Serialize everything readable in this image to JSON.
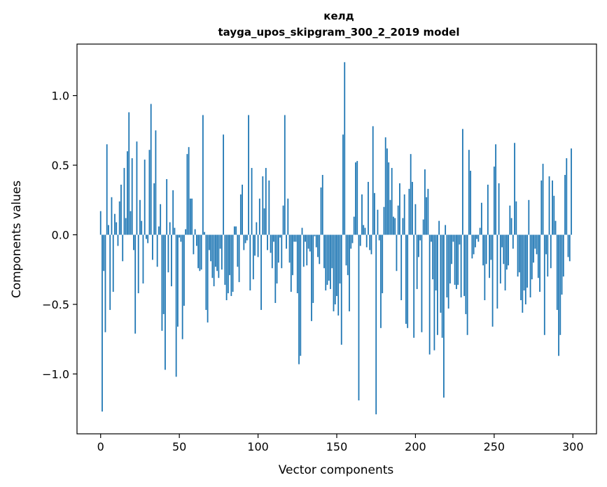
{
  "chart_data": {
    "type": "bar",
    "title": "келд",
    "subtitle": "tayga_upos_skipgram_300_2_2019 model",
    "xlabel": "Vector components",
    "ylabel": "Components values",
    "xlim": [
      -15,
      315
    ],
    "ylim": [
      -1.43,
      1.37
    ],
    "xticks": [
      0,
      50,
      100,
      150,
      200,
      250,
      300
    ],
    "xtick_labels": [
      "0",
      "50",
      "100",
      "150",
      "200",
      "250",
      "300"
    ],
    "yticks": [
      -1.0,
      -0.5,
      0.0,
      0.5,
      1.0
    ],
    "ytick_labels": [
      "−1.0",
      "−0.5",
      "0.0",
      "0.5",
      "1.0"
    ],
    "bar_color": "#1f77b4",
    "values": [
      0.17,
      -1.27,
      -0.26,
      -0.7,
      0.65,
      0.07,
      -0.54,
      0.27,
      -0.41,
      0.15,
      0.09,
      -0.08,
      0.24,
      0.36,
      -0.19,
      0.48,
      0.12,
      0.6,
      0.88,
      0.17,
      0.55,
      -0.11,
      -0.71,
      0.67,
      -0.42,
      0.25,
      0.1,
      -0.35,
      0.54,
      -0.03,
      -0.06,
      0.61,
      0.94,
      -0.18,
      0.37,
      0.75,
      -0.23,
      0.06,
      0.22,
      -0.69,
      -0.57,
      -0.97,
      0.4,
      -0.27,
      0.09,
      -0.37,
      0.32,
      0.05,
      -1.02,
      -0.66,
      -0.02,
      -0.05,
      -0.75,
      -0.51,
      0.04,
      0.58,
      0.63,
      0.26,
      0.26,
      -0.14,
      0.04,
      -0.08,
      -0.24,
      -0.26,
      -0.25,
      0.86,
      0.02,
      -0.54,
      -0.63,
      -0.11,
      -0.19,
      -0.31,
      -0.37,
      -0.23,
      -0.26,
      -0.31,
      -0.1,
      -0.25,
      0.72,
      -0.36,
      -0.47,
      -0.42,
      -0.29,
      -0.44,
      -0.41,
      0.06,
      0.06,
      -0.23,
      -0.34,
      0.29,
      0.36,
      -0.11,
      -0.06,
      -0.04,
      0.86,
      -0.4,
      0.48,
      -0.32,
      -0.15,
      0.09,
      -0.16,
      0.26,
      -0.54,
      0.42,
      0.19,
      0.48,
      -0.11,
      0.39,
      -0.13,
      -0.24,
      -0.05,
      -0.49,
      -0.35,
      -0.2,
      -0.02,
      -0.24,
      0.21,
      0.86,
      -0.1,
      0.26,
      -0.2,
      -0.41,
      -0.29,
      -0.05,
      -0.05,
      -0.42,
      -0.93,
      -0.87,
      0.05,
      -0.23,
      -0.05,
      -0.22,
      -0.1,
      -0.12,
      -0.62,
      -0.49,
      -0.01,
      -0.09,
      -0.16,
      -0.21,
      0.34,
      0.43,
      -0.24,
      -0.4,
      -0.36,
      -0.33,
      -0.39,
      -0.24,
      -0.55,
      -0.5,
      -0.44,
      -0.58,
      -0.35,
      -0.79,
      0.72,
      1.24,
      -0.22,
      -0.29,
      -0.55,
      -0.1,
      -0.06,
      0.13,
      0.52,
      0.53,
      -1.19,
      -0.08,
      0.29,
      0.07,
      0.05,
      -0.09,
      0.38,
      -0.11,
      -0.14,
      0.78,
      0.3,
      -1.29,
      0.18,
      -0.04,
      -0.67,
      -0.42,
      0.2,
      0.7,
      0.62,
      0.52,
      0.25,
      0.48,
      0.13,
      0.12,
      -0.26,
      0.21,
      0.37,
      -0.47,
      0.12,
      0.29,
      -0.64,
      -0.67,
      0.33,
      0.58,
      0.38,
      -0.74,
      0.22,
      -0.39,
      -0.16,
      -0.04,
      -0.7,
      0.11,
      0.47,
      0.27,
      0.33,
      -0.86,
      -0.05,
      -0.32,
      -0.83,
      -0.4,
      -0.72,
      0.1,
      -0.56,
      -0.74,
      -1.17,
      0.07,
      -0.45,
      -0.53,
      -0.35,
      -0.21,
      -0.05,
      -0.36,
      -0.39,
      -0.36,
      -0.07,
      -0.45,
      0.76,
      -0.44,
      -0.57,
      -0.72,
      0.61,
      0.46,
      -0.17,
      -0.14,
      -0.09,
      -0.03,
      -0.05,
      0.05,
      0.23,
      -0.22,
      -0.47,
      -0.21,
      0.36,
      -0.31,
      -0.18,
      -0.66,
      0.49,
      0.65,
      -0.53,
      0.37,
      -0.35,
      -0.09,
      -0.21,
      -0.4,
      -0.25,
      -0.22,
      0.21,
      0.12,
      -0.1,
      0.66,
      0.24,
      -0.3,
      -0.27,
      -0.47,
      -0.56,
      -0.4,
      -0.5,
      -0.38,
      0.25,
      -0.45,
      -0.32,
      -0.2,
      -0.1,
      -0.14,
      -0.31,
      -0.41,
      0.39,
      0.51,
      -0.72,
      -0.14,
      -0.3,
      0.42,
      -0.24,
      0.39,
      0.28,
      0.1,
      -0.54,
      -0.87,
      -0.72,
      -0.43,
      -0.3,
      0.43,
      0.55,
      -0.16,
      -0.19,
      0.62
    ]
  }
}
